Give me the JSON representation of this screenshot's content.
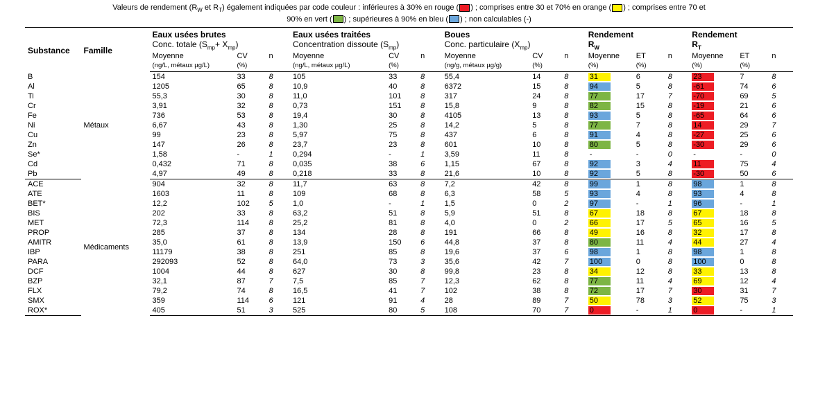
{
  "caption": {
    "line1_prefix": "Valeurs de rendement (R",
    "line1_sub1": "W",
    "line1_mid": " et R",
    "line1_sub2": "T",
    "line1_rest": ") également indiquées par code couleur : inférieures à 30% en rouge (",
    "line1_after_red": ") ; comprises entre 30 et 70% en orange (",
    "line1_after_yellow": ") ; comprises entre 70 et",
    "line2_pre": "90% en vert (",
    "line2_mid": ") ; supérieures à 90% en bleu (",
    "line2_end": ") ;  non calculables (-)"
  },
  "legend_colors": {
    "red": "#ed1c24",
    "yellow": "#fff200",
    "green": "#7db544",
    "blue": "#6aa6dc"
  },
  "header": {
    "substance": "Substance",
    "famille": "Famille",
    "g1": "Eaux usées brutes",
    "g1b_pre": "Conc. totale (S",
    "g1b_sub": "mp",
    "g1b_mid": "+ X",
    "g1b_sub2": "mp",
    "g1b_end": ")",
    "g2": "Eaux usées traitées",
    "g2b_pre": "  Concentration dissoute (S",
    "g2b_sub": "mp",
    "g2b_end": ")",
    "g3": "Boues",
    "g3b_pre": "Conc. particulaire (X",
    "g3b_sub": "mp",
    "g3b_end": ")",
    "g4_pre": "Rendement",
    "g4_r": "R",
    "g4_sub": "W",
    "g5_pre": "Rendement",
    "g5_r": "R",
    "g5_sub": "T",
    "moy": "Moyenne",
    "cv": "CV",
    "n": "n",
    "et": "ET",
    "unit_liq": "(ng/L, métaux µg/L)",
    "unit_sol": "(ng/g, métaux µg/g)",
    "unit_pc": "(%)"
  },
  "families": [
    {
      "name": "Métaux",
      "span": 11
    },
    {
      "name": "Médicaments",
      "span": 14
    }
  ],
  "rows": [
    {
      "s": "B",
      "a": "154",
      "b": "33",
      "c": "8",
      "d": "105",
      "e": "33",
      "f": "8",
      "g": "55,4",
      "h": "14",
      "i": "8",
      "rw": "31",
      "rwc": "#fff200",
      "j": "6",
      "k": "8",
      "rt": "23",
      "rtc": "#ed1c24",
      "l": "7",
      "m": "8"
    },
    {
      "s": "Al",
      "a": "1205",
      "b": "65",
      "c": "8",
      "d": "10,9",
      "e": "40",
      "f": "8",
      "g": "6372",
      "h": "15",
      "i": "8",
      "rw": "94",
      "rwc": "#6aa6dc",
      "j": "5",
      "k": "8",
      "rt": "-61",
      "rtc": "#ed1c24",
      "l": "74",
      "m": "6"
    },
    {
      "s": "Ti",
      "a": "55,3",
      "b": "30",
      "c": "8",
      "d": "11,0",
      "e": "101",
      "f": "8",
      "g": "317",
      "h": "24",
      "i": "8",
      "rw": "77",
      "rwc": "#7db544",
      "j": "17",
      "k": "7",
      "rt": "-70",
      "rtc": "#ed1c24",
      "l": "69",
      "m": "5"
    },
    {
      "s": "Cr",
      "a": "3,91",
      "b": "32",
      "c": "8",
      "d": "0,73",
      "e": "151",
      "f": "8",
      "g": "15,8",
      "h": "9",
      "i": "8",
      "rw": "82",
      "rwc": "#7db544",
      "j": "15",
      "k": "8",
      "rt": "-19",
      "rtc": "#ed1c24",
      "l": "21",
      "m": "6"
    },
    {
      "s": "Fe",
      "a": "736",
      "b": "53",
      "c": "8",
      "d": "19,4",
      "e": "30",
      "f": "8",
      "g": "4105",
      "h": "13",
      "i": "8",
      "rw": "93",
      "rwc": "#6aa6dc",
      "j": "5",
      "k": "8",
      "rt": "-65",
      "rtc": "#ed1c24",
      "l": "64",
      "m": "6"
    },
    {
      "s": "Ni",
      "a": "6,67",
      "b": "43",
      "c": "8",
      "d": "1,30",
      "e": "25",
      "f": "8",
      "g": "14,2",
      "h": "5",
      "i": "8",
      "rw": "77",
      "rwc": "#7db544",
      "j": "7",
      "k": "8",
      "rt": "14",
      "rtc": "#ed1c24",
      "l": "29",
      "m": "7"
    },
    {
      "s": "Cu",
      "a": "99",
      "b": "23",
      "c": "8",
      "d": "5,97",
      "e": "75",
      "f": "8",
      "g": "437",
      "h": "6",
      "i": "8",
      "rw": "91",
      "rwc": "#6aa6dc",
      "j": "4",
      "k": "8",
      "rt": "-27",
      "rtc": "#ed1c24",
      "l": "25",
      "m": "6"
    },
    {
      "s": "Zn",
      "a": "147",
      "b": "26",
      "c": "8",
      "d": "23,7",
      "e": "23",
      "f": "8",
      "g": "601",
      "h": "10",
      "i": "8",
      "rw": "80",
      "rwc": "#7db544",
      "j": "5",
      "k": "8",
      "rt": "-30",
      "rtc": "#ed1c24",
      "l": "29",
      "m": "6"
    },
    {
      "s": "Se*",
      "a": "1,58",
      "b": "-",
      "c": "1",
      "d": "0,294",
      "e": "-",
      "f": "1",
      "g": "3,59",
      "h": "11",
      "i": "8",
      "rw": "-",
      "rwc": "",
      "j": "-",
      "k": "0",
      "rt": "-",
      "rtc": "",
      "l": "-",
      "m": "0"
    },
    {
      "s": "Cd",
      "a": "0,432",
      "b": "71",
      "c": "8",
      "d": "0,035",
      "e": "38",
      "f": "6",
      "g": "1,15",
      "h": "67",
      "i": "8",
      "rw": "92",
      "rwc": "#6aa6dc",
      "j": "3",
      "k": "4",
      "rt": "11",
      "rtc": "#ed1c24",
      "l": "75",
      "m": "4"
    },
    {
      "s": "Pb",
      "a": "4,97",
      "b": "49",
      "c": "8",
      "d": "0,218",
      "e": "33",
      "f": "8",
      "g": "21,6",
      "h": "10",
      "i": "8",
      "rw": "92",
      "rwc": "#6aa6dc",
      "j": "5",
      "k": "8",
      "rt": "-30",
      "rtc": "#ed1c24",
      "l": "50",
      "m": "6",
      "sep": true
    },
    {
      "s": "ACE",
      "a": "904",
      "b": "32",
      "c": "8",
      "d": "11,7",
      "e": "63",
      "f": "8",
      "g": "7,2",
      "h": "42",
      "i": "8",
      "rw": "99",
      "rwc": "#6aa6dc",
      "j": "1",
      "k": "8",
      "rt": "98",
      "rtc": "#6aa6dc",
      "l": "1",
      "m": "8"
    },
    {
      "s": "ATE",
      "a": "1603",
      "b": "11",
      "c": "8",
      "d": "109",
      "e": "68",
      "f": "8",
      "g": "6,3",
      "h": "58",
      "i": "5",
      "rw": "93",
      "rwc": "#6aa6dc",
      "j": "4",
      "k": "8",
      "rt": "93",
      "rtc": "#6aa6dc",
      "l": "4",
      "m": "8"
    },
    {
      "s": "BET*",
      "a": "12,2",
      "b": "102",
      "c": "5",
      "d": "1,0",
      "e": "-",
      "f": "1",
      "g": "1,5",
      "h": "0",
      "i": "2",
      "rw": "97",
      "rwc": "#6aa6dc",
      "j": "-",
      "k": "1",
      "rt": "96",
      "rtc": "#6aa6dc",
      "l": "-",
      "m": "1"
    },
    {
      "s": "BIS",
      "a": "202",
      "b": "33",
      "c": "8",
      "d": "63,2",
      "e": "51",
      "f": "8",
      "g": "5,9",
      "h": "51",
      "i": "8",
      "rw": "67",
      "rwc": "#fff200",
      "j": "18",
      "k": "8",
      "rt": "67",
      "rtc": "#fff200",
      "l": "18",
      "m": "8"
    },
    {
      "s": "MET",
      "a": "72,3",
      "b": "114",
      "c": "8",
      "d": "25,2",
      "e": "81",
      "f": "8",
      "g": "4,0",
      "h": "0",
      "i": "2",
      "rw": "66",
      "rwc": "#fff200",
      "j": "17",
      "k": "5",
      "rt": "65",
      "rtc": "#fff200",
      "l": "16",
      "m": "5"
    },
    {
      "s": "PROP",
      "a": "285",
      "b": "37",
      "c": "8",
      "d": "134",
      "e": "28",
      "f": "8",
      "g": "191",
      "h": "66",
      "i": "8",
      "rw": "49",
      "rwc": "#fff200",
      "j": "16",
      "k": "8",
      "rt": "32",
      "rtc": "#fff200",
      "l": "17",
      "m": "8"
    },
    {
      "s": "AMITR",
      "a": "35,0",
      "b": "61",
      "c": "8",
      "d": "13,9",
      "e": "150",
      "f": "6",
      "g": "44,8",
      "h": "37",
      "i": "8",
      "rw": "80",
      "rwc": "#7db544",
      "j": "11",
      "k": "4",
      "rt": "44",
      "rtc": "#fff200",
      "l": "27",
      "m": "4"
    },
    {
      "s": "IBP",
      "a": "11179",
      "b": "38",
      "c": "8",
      "d": "251",
      "e": "85",
      "f": "8",
      "g": "19,6",
      "h": "37",
      "i": "6",
      "rw": "98",
      "rwc": "#6aa6dc",
      "j": "1",
      "k": "8",
      "rt": "98",
      "rtc": "#6aa6dc",
      "l": "1",
      "m": "8"
    },
    {
      "s": "PARA",
      "a": "292093",
      "b": "52",
      "c": "8",
      "d": "64,0",
      "e": "73",
      "f": "3",
      "g": "35,6",
      "h": "42",
      "i": "7",
      "rw": "100",
      "rwc": "#6aa6dc",
      "j": "0",
      "k": "8",
      "rt": "100",
      "rtc": "#6aa6dc",
      "l": "0",
      "m": "8"
    },
    {
      "s": "DCF",
      "a": "1004",
      "b": "44",
      "c": "8",
      "d": "627",
      "e": "30",
      "f": "8",
      "g": "99,8",
      "h": "23",
      "i": "8",
      "rw": "34",
      "rwc": "#fff200",
      "j": "12",
      "k": "8",
      "rt": "33",
      "rtc": "#fff200",
      "l": "13",
      "m": "8"
    },
    {
      "s": "BZP",
      "a": "32,1",
      "b": "87",
      "c": "7",
      "d": "7,5",
      "e": "85",
      "f": "7",
      "g": "12,3",
      "h": "62",
      "i": "8",
      "rw": "77",
      "rwc": "#7db544",
      "j": "11",
      "k": "4",
      "rt": "69",
      "rtc": "#fff200",
      "l": "12",
      "m": "4"
    },
    {
      "s": "FLX",
      "a": "79,2",
      "b": "74",
      "c": "8",
      "d": "16,5",
      "e": "41",
      "f": "7",
      "g": "102",
      "h": "38",
      "i": "8",
      "rw": "72",
      "rwc": "#7db544",
      "j": "17",
      "k": "7",
      "rt": "30",
      "rtc": "#ed1c24",
      "l": "31",
      "m": "7"
    },
    {
      "s": "SMX",
      "a": "359",
      "b": "114",
      "c": "6",
      "d": "121",
      "e": "91",
      "f": "4",
      "g": "28",
      "h": "89",
      "i": "7",
      "rw": "50",
      "rwc": "#fff200",
      "j": "78",
      "k": "3",
      "rt": "52",
      "rtc": "#fff200",
      "l": "75",
      "m": "3"
    },
    {
      "s": "ROX*",
      "a": "405",
      "b": "51",
      "c": "3",
      "d": "525",
      "e": "80",
      "f": "5",
      "g": "108",
      "h": "70",
      "i": "7",
      "rw": "0",
      "rwc": "#ed1c24",
      "j": "-",
      "k": "1",
      "rt": "0",
      "rtc": "#ed1c24",
      "l": "-",
      "m": "1",
      "last": true
    }
  ]
}
